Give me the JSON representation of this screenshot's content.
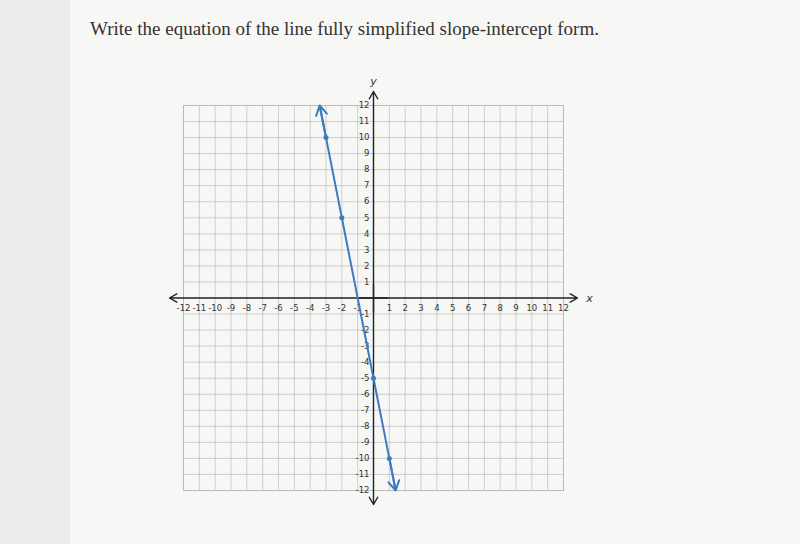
{
  "chart_data": {
    "type": "line",
    "title": "Write the equation of the line fully simplified slope-intercept form.",
    "x_label": "x",
    "y_label": "y",
    "x": [
      -3.4,
      -3,
      -2,
      0,
      1,
      1.4
    ],
    "values": [
      12,
      10,
      5,
      -5,
      -10,
      -12
    ],
    "points": {
      "x": [
        -3,
        -2,
        0,
        1
      ],
      "y": [
        10,
        5,
        -5,
        -10
      ]
    },
    "marker": "dot",
    "color": "#3d7cc0",
    "xlim": [
      -12,
      12
    ],
    "ylim": [
      -12,
      12
    ],
    "xticks": [
      -12,
      -11,
      -10,
      -9,
      -8,
      -7,
      -6,
      -5,
      -4,
      -3,
      -2,
      -1,
      1,
      2,
      3,
      4,
      5,
      6,
      7,
      8,
      9,
      10,
      11,
      12
    ],
    "yticks": [
      -12,
      -11,
      -10,
      -9,
      -8,
      -7,
      -6,
      -5,
      -4,
      -3,
      -2,
      -1,
      1,
      2,
      3,
      4,
      5,
      6,
      7,
      8,
      9,
      10,
      11,
      12
    ],
    "grid": true
  }
}
